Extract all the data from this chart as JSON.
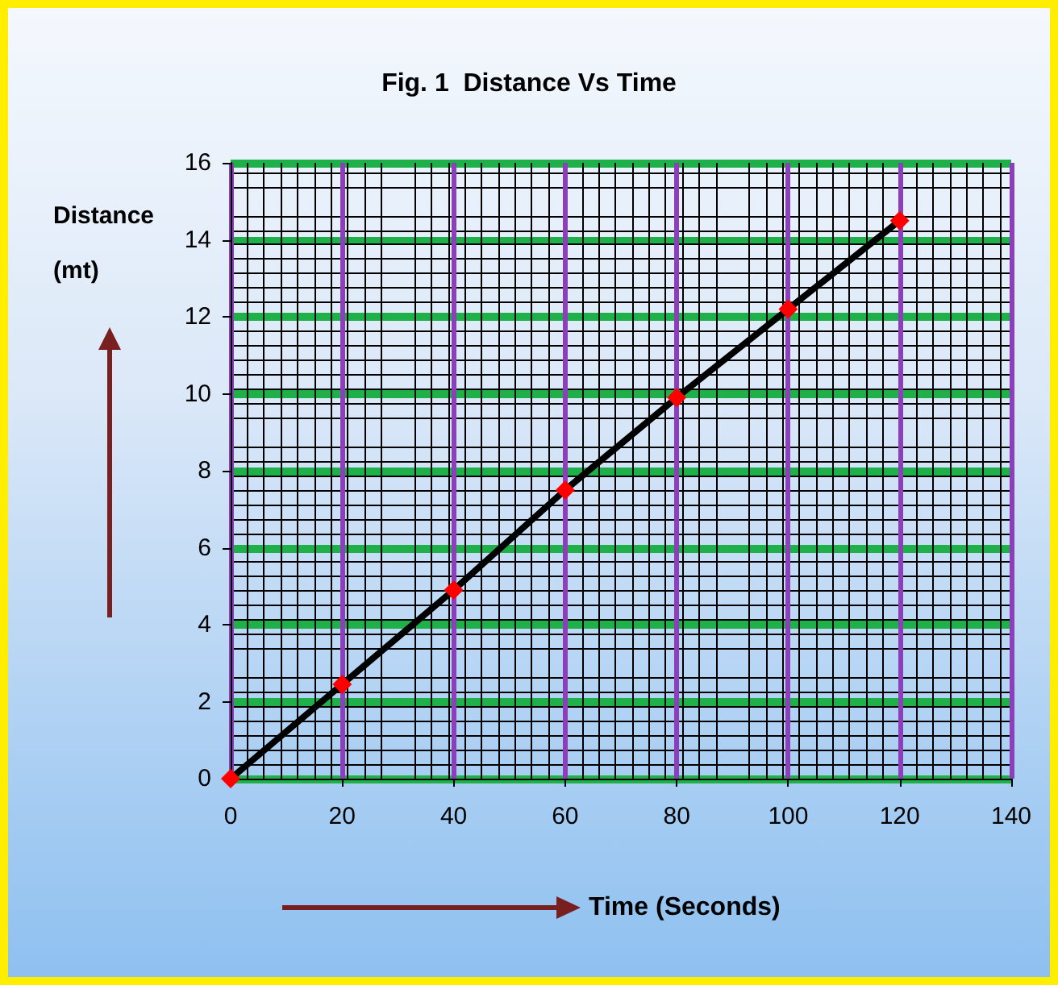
{
  "chart_data": {
    "type": "line",
    "title": "Fig. 1  Distance Vs Time",
    "xlabel": "Time (Seconds)",
    "ylabel": "Distance\n(mt)",
    "x": [
      0,
      20,
      40,
      60,
      80,
      100,
      120
    ],
    "series": [
      {
        "color": "#000000",
        "values": [
          0,
          2.45,
          4.9,
          7.5,
          9.9,
          12.2,
          14.5
        ]
      }
    ],
    "marker": "diamond",
    "line_style": "solid",
    "grid": true,
    "xlim": [
      0,
      140
    ],
    "xticks": [
      0,
      20,
      40,
      60,
      80,
      100,
      120,
      140
    ],
    "ylim": [
      0,
      16
    ],
    "yticks": [
      0,
      2,
      4,
      6,
      8,
      10,
      12,
      14,
      16
    ]
  }
}
